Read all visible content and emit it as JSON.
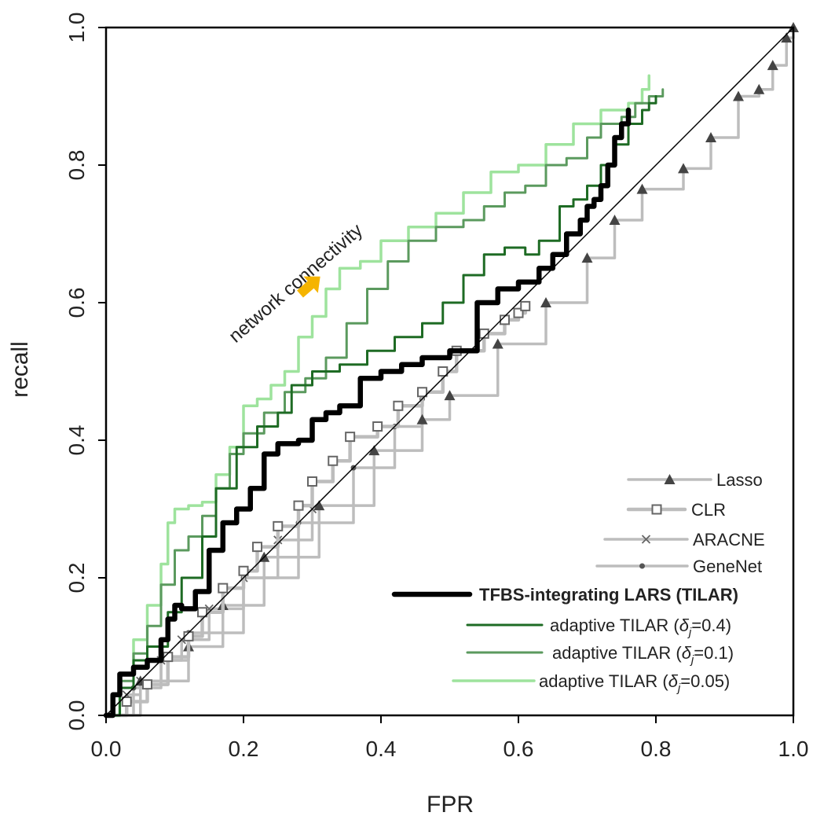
{
  "chart_data": {
    "type": "line",
    "xlabel": "FPR",
    "ylabel": "recall",
    "xlim": [
      0.0,
      1.0
    ],
    "ylim": [
      0.0,
      1.0
    ],
    "xticks": [
      "0.0",
      "0.2",
      "0.4",
      "0.6",
      "0.8",
      "1.0"
    ],
    "yticks": [
      "0.0",
      "0.2",
      "0.4",
      "0.6",
      "0.8",
      "1.0"
    ],
    "grid": false,
    "legend_position": "bottom-right",
    "annotation": "network connectivity",
    "diagonal_reference": true,
    "colors": {
      "gray": "#bdbdbd",
      "black": "#000000",
      "dark_green": "#1e6b24",
      "mid_green": "#5b9a5e",
      "light_green": "#9ee39d",
      "arrow": "#f5b400"
    },
    "series": [
      {
        "name": "Lasso",
        "label": "Lasso",
        "marker": "triangle",
        "x": [
          0.0,
          0.05,
          0.12,
          0.17,
          0.23,
          0.31,
          0.39,
          0.46,
          0.5,
          0.57,
          0.64,
          0.7,
          0.74,
          0.78,
          0.84,
          0.88,
          0.92,
          0.95,
          0.97,
          0.99,
          1.0
        ],
        "y": [
          0.0,
          0.05,
          0.1,
          0.16,
          0.23,
          0.305,
          0.385,
          0.43,
          0.465,
          0.54,
          0.6,
          0.665,
          0.72,
          0.765,
          0.795,
          0.84,
          0.9,
          0.91,
          0.945,
          0.985,
          1.0
        ]
      },
      {
        "name": "CLR",
        "label": "CLR",
        "marker": "square",
        "x": [
          0.0,
          0.03,
          0.06,
          0.09,
          0.12,
          0.14,
          0.17,
          0.2,
          0.22,
          0.25,
          0.28,
          0.3,
          0.33,
          0.355,
          0.395,
          0.425,
          0.46,
          0.49,
          0.51,
          0.55,
          0.58,
          0.6,
          0.61
        ],
        "y": [
          0.0,
          0.02,
          0.045,
          0.085,
          0.115,
          0.15,
          0.185,
          0.21,
          0.245,
          0.275,
          0.305,
          0.34,
          0.37,
          0.405,
          0.42,
          0.45,
          0.47,
          0.5,
          0.53,
          0.555,
          0.575,
          0.585,
          0.595
        ]
      },
      {
        "name": "ARACNE",
        "label": "ARACNE",
        "marker": "cross",
        "x": [
          0.0,
          0.03,
          0.05,
          0.08,
          0.11,
          0.15,
          0.2,
          0.25,
          0.3
        ],
        "y": [
          0.0,
          0.03,
          0.05,
          0.08,
          0.11,
          0.155,
          0.2,
          0.255,
          0.3
        ]
      },
      {
        "name": "GeneNet",
        "label": "GeneNet",
        "marker": "dot",
        "x": [
          0.0,
          0.04,
          0.08,
          0.12,
          0.2,
          0.28,
          0.36,
          0.42,
          0.46
        ],
        "y": [
          0.0,
          0.04,
          0.08,
          0.12,
          0.2,
          0.28,
          0.36,
          0.42,
          0.46
        ]
      },
      {
        "name": "TFBS-integrating LARS (TILAR)",
        "label": "TFBS-integrating LARS (TILAR)",
        "x": [
          0.0,
          0.01,
          0.02,
          0.04,
          0.06,
          0.08,
          0.09,
          0.1,
          0.11,
          0.13,
          0.15,
          0.17,
          0.19,
          0.21,
          0.23,
          0.25,
          0.28,
          0.3,
          0.32,
          0.34,
          0.37,
          0.4,
          0.43,
          0.46,
          0.48,
          0.5,
          0.54,
          0.57,
          0.6,
          0.63,
          0.65,
          0.67,
          0.69,
          0.7,
          0.71,
          0.72,
          0.73,
          0.74,
          0.75,
          0.76
        ],
        "y": [
          0.0,
          0.03,
          0.06,
          0.07,
          0.08,
          0.11,
          0.14,
          0.16,
          0.155,
          0.18,
          0.24,
          0.28,
          0.3,
          0.33,
          0.38,
          0.395,
          0.4,
          0.43,
          0.44,
          0.45,
          0.49,
          0.5,
          0.51,
          0.52,
          0.52,
          0.53,
          0.6,
          0.62,
          0.63,
          0.65,
          0.67,
          0.7,
          0.72,
          0.74,
          0.75,
          0.77,
          0.8,
          0.84,
          0.86,
          0.88
        ]
      },
      {
        "name": "adaptive TILAR (δj=0.4)",
        "label_prefix": "adaptive TILAR (",
        "label_symbol": "δ",
        "label_sub": "j",
        "label_suffix": "=0.4)",
        "x": [
          0.0,
          0.02,
          0.04,
          0.06,
          0.09,
          0.11,
          0.14,
          0.16,
          0.19,
          0.22,
          0.25,
          0.27,
          0.3,
          0.34,
          0.38,
          0.42,
          0.46,
          0.49,
          0.52,
          0.55,
          0.58,
          0.61,
          0.63,
          0.66,
          0.68,
          0.7,
          0.72,
          0.74,
          0.76,
          0.78,
          0.79,
          0.8
        ],
        "y": [
          0.0,
          0.04,
          0.08,
          0.1,
          0.15,
          0.2,
          0.26,
          0.33,
          0.39,
          0.42,
          0.44,
          0.48,
          0.5,
          0.51,
          0.53,
          0.55,
          0.57,
          0.6,
          0.64,
          0.67,
          0.68,
          0.67,
          0.69,
          0.74,
          0.75,
          0.77,
          0.8,
          0.83,
          0.86,
          0.88,
          0.89,
          0.9
        ]
      },
      {
        "name": "adaptive TILAR (δj=0.1)",
        "label_prefix": "adaptive TILAR (",
        "label_symbol": "δ",
        "label_sub": "j",
        "label_suffix": "=0.1)",
        "x": [
          0.0,
          0.02,
          0.04,
          0.06,
          0.08,
          0.1,
          0.12,
          0.14,
          0.16,
          0.18,
          0.2,
          0.23,
          0.26,
          0.29,
          0.32,
          0.35,
          0.38,
          0.41,
          0.44,
          0.48,
          0.52,
          0.55,
          0.58,
          0.61,
          0.64,
          0.67,
          0.7,
          0.72,
          0.75,
          0.77,
          0.79,
          0.81
        ],
        "y": [
          0.0,
          0.05,
          0.09,
          0.13,
          0.19,
          0.24,
          0.26,
          0.29,
          0.33,
          0.38,
          0.41,
          0.44,
          0.47,
          0.49,
          0.52,
          0.57,
          0.62,
          0.66,
          0.69,
          0.71,
          0.72,
          0.74,
          0.76,
          0.77,
          0.8,
          0.81,
          0.84,
          0.86,
          0.87,
          0.89,
          0.9,
          0.91
        ]
      },
      {
        "name": "adaptive TILAR (δj=0.05)",
        "label_prefix": "adaptive TILAR (",
        "label_symbol": "δ",
        "label_sub": "j",
        "label_suffix": "=0.05)",
        "x": [
          0.0,
          0.02,
          0.04,
          0.06,
          0.08,
          0.09,
          0.1,
          0.12,
          0.14,
          0.16,
          0.18,
          0.2,
          0.22,
          0.24,
          0.26,
          0.28,
          0.3,
          0.32,
          0.34,
          0.37,
          0.4,
          0.44,
          0.48,
          0.52,
          0.56,
          0.6,
          0.64,
          0.68,
          0.72,
          0.76,
          0.78,
          0.79
        ],
        "y": [
          0.0,
          0.06,
          0.11,
          0.16,
          0.22,
          0.28,
          0.3,
          0.305,
          0.31,
          0.35,
          0.39,
          0.45,
          0.46,
          0.48,
          0.5,
          0.55,
          0.58,
          0.62,
          0.65,
          0.66,
          0.69,
          0.71,
          0.73,
          0.76,
          0.79,
          0.8,
          0.83,
          0.86,
          0.88,
          0.89,
          0.91,
          0.93
        ]
      }
    ]
  }
}
